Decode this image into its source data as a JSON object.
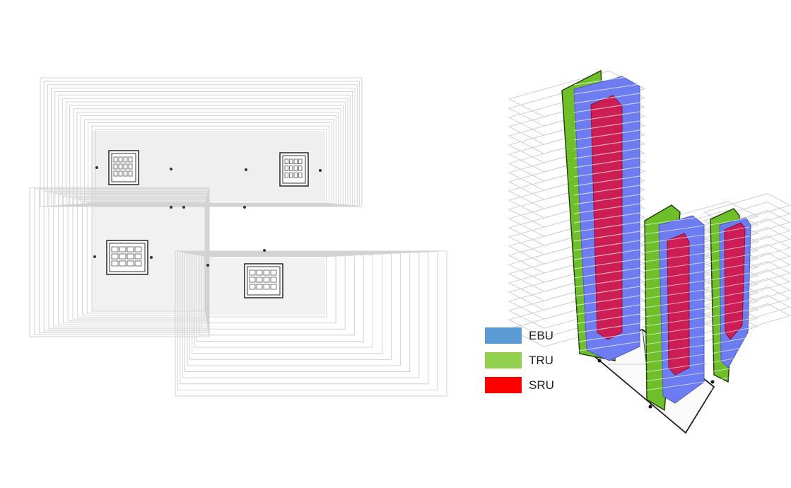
{
  "legend": [
    {
      "label": "EBU",
      "color": "#5b9bd5"
    },
    {
      "label": "TRU",
      "color": "#92d050"
    },
    {
      "label": "SRU",
      "color": "#ff0000"
    }
  ],
  "colors": {
    "floor_lines": "#d3d3d3",
    "column_green": "#6fbf2a",
    "column_blue": "#6d7cf0",
    "column_red": "#cc1d55",
    "core_stroke": "#333333"
  }
}
